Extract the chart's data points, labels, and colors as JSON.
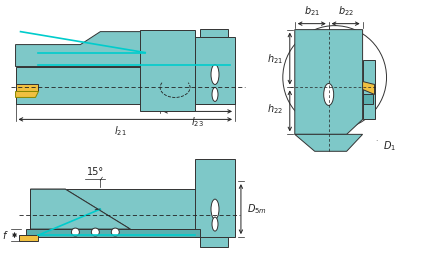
{
  "bg_color": "#ffffff",
  "teal_fill": "#7ec8c8",
  "teal_fill2": "#89cece",
  "dark_outline": "#333333",
  "yellow_insert": "#f0c040",
  "cyan_line": "#00cccc",
  "dim_color": "#222222",
  "figsize": [
    4.32,
    2.59
  ],
  "dpi": 100
}
